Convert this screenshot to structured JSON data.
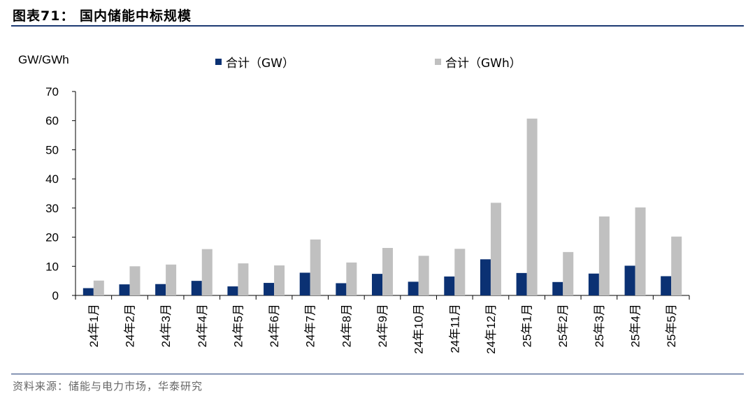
{
  "figure": {
    "title": "图表71：  国内储能中标规模",
    "source": "资料来源：储能与电力市场，华泰研究"
  },
  "chart_data": {
    "type": "bar",
    "unit_label": "GW/GWh",
    "categories": [
      "24年1月",
      "24年2月",
      "24年3月",
      "24年4月",
      "24年5月",
      "24年6月",
      "24年7月",
      "24年8月",
      "24年9月",
      "24年10月",
      "24年11月",
      "24年12月",
      "25年1月",
      "25年2月",
      "25年3月",
      "25年4月",
      "25年5月"
    ],
    "series": [
      {
        "name": "合计（GW）",
        "color": "#0b3173",
        "values": [
          2.5,
          3.8,
          3.9,
          5.0,
          3.1,
          4.3,
          7.8,
          4.2,
          7.4,
          4.7,
          6.5,
          12.4,
          7.7,
          4.6,
          7.5,
          10.2,
          6.6
        ]
      },
      {
        "name": "合计（GWh）",
        "color": "#c0c0c0",
        "values": [
          5.1,
          10.0,
          10.6,
          15.9,
          11.0,
          10.3,
          19.2,
          11.3,
          16.3,
          13.6,
          16.0,
          31.8,
          60.7,
          14.9,
          27.1,
          30.2,
          20.2
        ]
      }
    ],
    "ylim": [
      0,
      70
    ],
    "yticks": [
      0,
      10,
      20,
      30,
      40,
      50,
      60,
      70
    ],
    "legend_position": "top",
    "grid": false
  }
}
